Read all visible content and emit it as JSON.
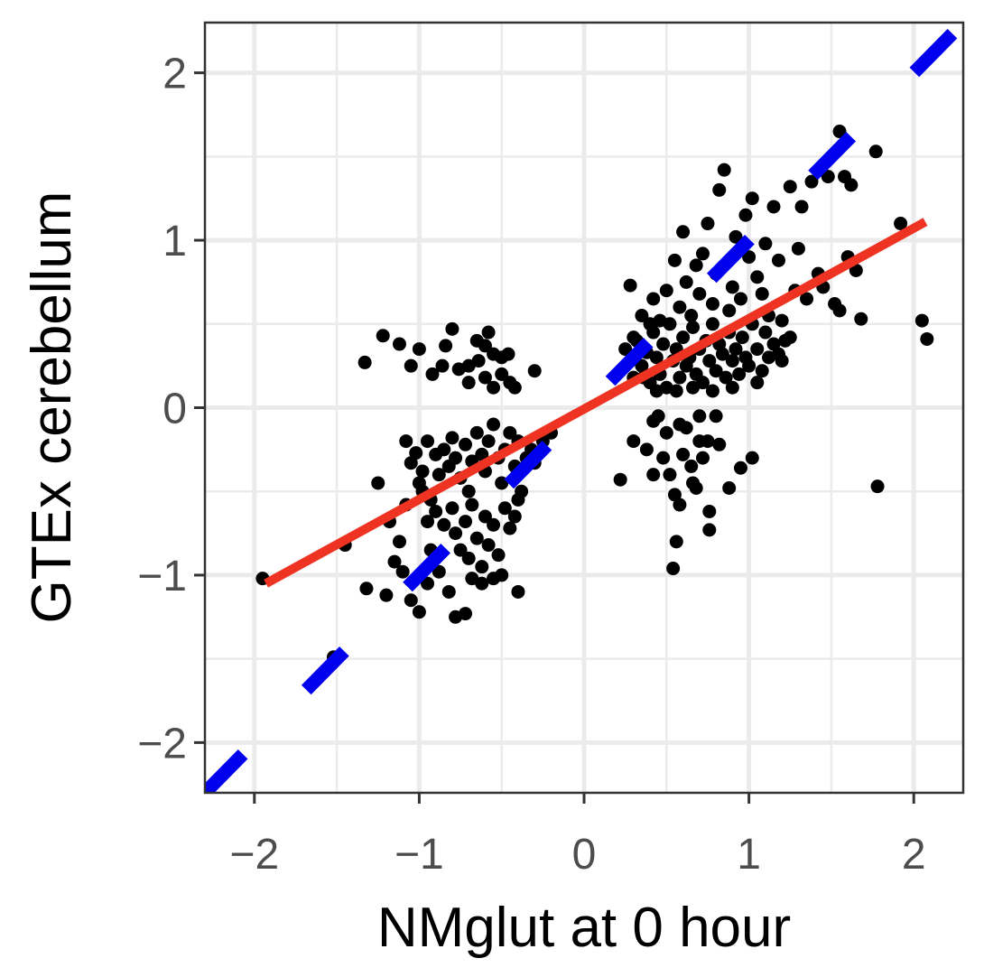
{
  "chart_data": {
    "type": "scatter",
    "title": "",
    "xlabel": "NMglut at 0 hour",
    "ylabel": "GTEx cerebellum",
    "xlim": [
      -2.3,
      2.3
    ],
    "ylim": [
      -2.3,
      2.3
    ],
    "x_ticks": [
      -2,
      -1,
      0,
      1,
      2
    ],
    "y_ticks": [
      -2,
      -1,
      0,
      1,
      2
    ],
    "x_tick_labels": [
      "−2",
      "−1",
      "0",
      "1",
      "2"
    ],
    "y_tick_labels": [
      "−2",
      "−1",
      "0",
      "1",
      "2"
    ],
    "grid": true,
    "legend": "none",
    "colors": {
      "points": "#000000",
      "identity_line": "#0000ee",
      "fit_line": "#ee3322",
      "grid": "#ebebeb",
      "panel_border": "#333333"
    },
    "reference_lines": [
      {
        "kind": "identity",
        "style": "dashed",
        "color": "#0000ee",
        "intercept": 0,
        "slope": 1
      },
      {
        "kind": "linear-fit",
        "style": "solid",
        "color": "#ee3322",
        "x": [
          -1.93,
          2.07
        ],
        "y": [
          -1.05,
          1.11
        ]
      }
    ],
    "points": [
      [
        -1.95,
        -1.02
      ],
      [
        -1.52,
        -1.49
      ],
      [
        -1.32,
        -1.08
      ],
      [
        -1.33,
        0.27
      ],
      [
        -1.22,
        0.43
      ],
      [
        -1.12,
        0.38
      ],
      [
        -1.0,
        0.35
      ],
      [
        -1.05,
        0.25
      ],
      [
        -0.92,
        0.2
      ],
      [
        -0.84,
        0.37
      ],
      [
        -0.8,
        0.47
      ],
      [
        -0.86,
        0.25
      ],
      [
        -0.76,
        0.23
      ],
      [
        -0.7,
        0.25
      ],
      [
        -0.64,
        0.28
      ],
      [
        -0.6,
        0.37
      ],
      [
        -0.55,
        0.32
      ],
      [
        -0.5,
        0.3
      ],
      [
        -0.46,
        0.32
      ],
      [
        -0.45,
        0.15
      ],
      [
        -0.42,
        0.12
      ],
      [
        -0.3,
        0.22
      ],
      [
        -0.7,
        0.15
      ],
      [
        -0.6,
        0.18
      ],
      [
        -0.55,
        0.12
      ],
      [
        -0.5,
        0.2
      ],
      [
        -0.65,
        0.4
      ],
      [
        -0.58,
        0.45
      ],
      [
        -1.08,
        -0.2
      ],
      [
        -1.02,
        -0.27
      ],
      [
        -1.05,
        -0.33
      ],
      [
        -0.98,
        -0.38
      ],
      [
        -0.95,
        -0.2
      ],
      [
        -0.9,
        -0.28
      ],
      [
        -0.88,
        -0.4
      ],
      [
        -0.85,
        -0.25
      ],
      [
        -0.82,
        -0.35
      ],
      [
        -0.8,
        -0.18
      ],
      [
        -0.78,
        -0.3
      ],
      [
        -0.75,
        -0.42
      ],
      [
        -0.72,
        -0.22
      ],
      [
        -0.7,
        -0.5
      ],
      [
        -0.68,
        -0.32
      ],
      [
        -0.65,
        -0.15
      ],
      [
        -0.62,
        -0.28
      ],
      [
        -0.6,
        -0.38
      ],
      [
        -0.58,
        -0.2
      ],
      [
        -0.55,
        -0.1
      ],
      [
        -0.52,
        -0.3
      ],
      [
        -0.5,
        -0.45
      ],
      [
        -0.48,
        -0.25
      ],
      [
        -0.45,
        -0.15
      ],
      [
        -0.42,
        -0.35
      ],
      [
        -0.4,
        -0.2
      ],
      [
        -0.38,
        -0.5
      ],
      [
        -0.35,
        -0.3
      ],
      [
        -0.32,
        -0.25
      ],
      [
        -0.3,
        -0.33
      ],
      [
        -0.25,
        -0.2
      ],
      [
        -0.2,
        -0.15
      ],
      [
        -0.93,
        -0.55
      ],
      [
        -0.9,
        -0.62
      ],
      [
        -0.85,
        -0.7
      ],
      [
        -0.8,
        -0.6
      ],
      [
        -0.78,
        -0.75
      ],
      [
        -0.75,
        -0.85
      ],
      [
        -0.72,
        -0.68
      ],
      [
        -0.7,
        -0.9
      ],
      [
        -0.68,
        -0.58
      ],
      [
        -0.65,
        -0.78
      ],
      [
        -0.62,
        -0.95
      ],
      [
        -0.6,
        -0.65
      ],
      [
        -0.58,
        -0.82
      ],
      [
        -0.55,
        -0.7
      ],
      [
        -0.52,
        -0.88
      ],
      [
        -0.5,
        -1.0
      ],
      [
        -0.48,
        -0.6
      ],
      [
        -0.45,
        -0.72
      ],
      [
        -0.42,
        -0.65
      ],
      [
        -0.4,
        -0.55
      ],
      [
        -1.15,
        -0.92
      ],
      [
        -1.1,
        -0.98
      ],
      [
        -1.05,
        -1.15
      ],
      [
        -1.0,
        -1.22
      ],
      [
        -0.95,
        -1.05
      ],
      [
        -0.88,
        -0.98
      ],
      [
        -0.82,
        -1.1
      ],
      [
        -0.78,
        -1.25
      ],
      [
        -0.72,
        -1.23
      ],
      [
        -0.68,
        -1.02
      ],
      [
        -0.62,
        -1.05
      ],
      [
        -0.55,
        -1.02
      ],
      [
        -0.4,
        -1.1
      ],
      [
        -1.2,
        -1.12
      ],
      [
        -1.12,
        -0.8
      ],
      [
        -1.08,
        -0.58
      ],
      [
        -1.0,
        -0.45
      ],
      [
        -0.95,
        -0.68
      ],
      [
        -1.18,
        -0.68
      ],
      [
        -1.45,
        -0.82
      ],
      [
        -1.25,
        -0.45
      ],
      [
        -0.98,
        -0.5
      ],
      [
        -0.93,
        -0.85
      ],
      [
        0.22,
        -0.43
      ],
      [
        0.3,
        -0.2
      ],
      [
        0.42,
        -0.08
      ],
      [
        0.38,
        -0.25
      ],
      [
        0.42,
        -0.4
      ],
      [
        0.48,
        -0.3
      ],
      [
        0.5,
        -0.15
      ],
      [
        0.52,
        -0.4
      ],
      [
        0.55,
        -0.52
      ],
      [
        0.58,
        -0.58
      ],
      [
        0.6,
        -0.28
      ],
      [
        0.62,
        -0.12
      ],
      [
        0.65,
        -0.35
      ],
      [
        0.66,
        -0.45
      ],
      [
        0.68,
        -0.48
      ],
      [
        0.7,
        -0.2
      ],
      [
        0.72,
        -0.3
      ],
      [
        0.75,
        -0.2
      ],
      [
        0.76,
        -0.62
      ],
      [
        0.76,
        -0.73
      ],
      [
        0.8,
        -0.05
      ],
      [
        0.82,
        -0.22
      ],
      [
        0.88,
        -0.48
      ],
      [
        0.95,
        -0.36
      ],
      [
        1.02,
        -0.3
      ],
      [
        0.56,
        -0.8
      ],
      [
        0.54,
        -0.96
      ],
      [
        0.58,
        -0.1
      ],
      [
        0.45,
        -0.05
      ],
      [
        0.7,
        -0.05
      ],
      [
        0.25,
        0.35
      ],
      [
        0.28,
        0.28
      ],
      [
        0.3,
        0.18
      ],
      [
        0.32,
        0.4
      ],
      [
        0.35,
        0.25
      ],
      [
        0.38,
        0.33
      ],
      [
        0.4,
        0.15
      ],
      [
        0.42,
        0.45
      ],
      [
        0.44,
        0.3
      ],
      [
        0.46,
        0.2
      ],
      [
        0.48,
        0.38
      ],
      [
        0.5,
        0.12
      ],
      [
        0.52,
        0.5
      ],
      [
        0.54,
        0.28
      ],
      [
        0.56,
        0.35
      ],
      [
        0.58,
        0.18
      ],
      [
        0.6,
        0.42
      ],
      [
        0.62,
        0.25
      ],
      [
        0.64,
        0.3
      ],
      [
        0.66,
        0.48
      ],
      [
        0.68,
        0.2
      ],
      [
        0.7,
        0.35
      ],
      [
        0.72,
        0.15
      ],
      [
        0.74,
        0.4
      ],
      [
        0.76,
        0.28
      ],
      [
        0.78,
        0.5
      ],
      [
        0.8,
        0.22
      ],
      [
        0.82,
        0.38
      ],
      [
        0.84,
        0.32
      ],
      [
        0.86,
        0.18
      ],
      [
        0.88,
        0.45
      ],
      [
        0.9,
        0.28
      ],
      [
        0.92,
        0.35
      ],
      [
        0.94,
        0.2
      ],
      [
        0.96,
        0.42
      ],
      [
        0.98,
        0.3
      ],
      [
        1.0,
        0.25
      ],
      [
        1.02,
        0.5
      ],
      [
        1.05,
        0.35
      ],
      [
        1.08,
        0.22
      ],
      [
        1.1,
        0.45
      ],
      [
        1.12,
        0.3
      ],
      [
        1.15,
        0.38
      ],
      [
        1.2,
        0.28
      ],
      [
        1.25,
        0.42
      ],
      [
        0.28,
        0.73
      ],
      [
        0.35,
        0.55
      ],
      [
        0.42,
        0.65
      ],
      [
        0.5,
        0.7
      ],
      [
        0.55,
        0.88
      ],
      [
        0.58,
        0.6
      ],
      [
        0.6,
        1.05
      ],
      [
        0.62,
        0.75
      ],
      [
        0.65,
        0.55
      ],
      [
        0.68,
        0.85
      ],
      [
        0.7,
        0.68
      ],
      [
        0.72,
        0.92
      ],
      [
        0.75,
        1.1
      ],
      [
        0.78,
        0.62
      ],
      [
        0.8,
        0.8
      ],
      [
        0.82,
        1.3
      ],
      [
        0.85,
        1.42
      ],
      [
        0.88,
        0.58
      ],
      [
        0.9,
        0.72
      ],
      [
        0.92,
        1.02
      ],
      [
        0.95,
        0.65
      ],
      [
        0.98,
        1.15
      ],
      [
        1.0,
        0.9
      ],
      [
        1.02,
        1.25
      ],
      [
        1.05,
        0.78
      ],
      [
        1.08,
        0.68
      ],
      [
        1.1,
        0.98
      ],
      [
        1.12,
        0.55
      ],
      [
        1.15,
        1.2
      ],
      [
        1.18,
        0.88
      ],
      [
        1.2,
        0.52
      ],
      [
        1.25,
        1.32
      ],
      [
        1.28,
        0.7
      ],
      [
        1.3,
        0.95
      ],
      [
        1.32,
        1.2
      ],
      [
        1.35,
        0.65
      ],
      [
        1.38,
        1.35
      ],
      [
        1.42,
        0.8
      ],
      [
        1.48,
        1.38
      ],
      [
        1.52,
        0.62
      ],
      [
        1.55,
        1.65
      ],
      [
        1.58,
        1.38
      ],
      [
        1.6,
        0.9
      ],
      [
        1.62,
        1.33
      ],
      [
        1.65,
        0.82
      ],
      [
        1.68,
        0.53
      ],
      [
        1.77,
        1.53
      ],
      [
        1.92,
        1.1
      ],
      [
        2.05,
        0.52
      ],
      [
        2.08,
        0.41
      ],
      [
        1.78,
        -0.47
      ],
      [
        1.55,
        0.58
      ],
      [
        1.45,
        0.72
      ],
      [
        1.22,
        0.4
      ],
      [
        1.18,
        0.32
      ],
      [
        0.36,
        0.18
      ],
      [
        0.44,
        0.1
      ],
      [
        0.56,
        0.1
      ],
      [
        0.66,
        0.12
      ],
      [
        0.78,
        0.1
      ],
      [
        0.9,
        0.12
      ],
      [
        1.05,
        0.15
      ],
      [
        0.4,
        0.5
      ],
      [
        0.46,
        0.52
      ],
      [
        0.3,
        0.42
      ]
    ]
  }
}
